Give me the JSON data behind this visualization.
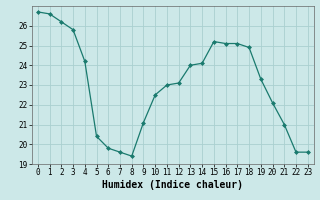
{
  "x": [
    0,
    1,
    2,
    3,
    4,
    5,
    6,
    7,
    8,
    9,
    10,
    11,
    12,
    13,
    14,
    15,
    16,
    17,
    18,
    19,
    20,
    21,
    22,
    23
  ],
  "y": [
    26.7,
    26.6,
    26.2,
    25.8,
    24.2,
    20.4,
    19.8,
    19.6,
    19.4,
    21.1,
    22.5,
    23.0,
    23.1,
    24.0,
    24.1,
    25.2,
    25.1,
    25.1,
    24.9,
    23.3,
    22.1,
    21.0,
    19.6,
    19.6
  ],
  "line_color": "#1a7a6e",
  "marker": "D",
  "marker_size": 2.0,
  "bg_color": "#cce8e8",
  "grid_color": "#aad0d0",
  "xlabel": "Humidex (Indice chaleur)",
  "ylim": [
    19,
    27
  ],
  "xlim": [
    -0.5,
    23.5
  ],
  "yticks": [
    19,
    20,
    21,
    22,
    23,
    24,
    25,
    26
  ],
  "xticks": [
    0,
    1,
    2,
    3,
    4,
    5,
    6,
    7,
    8,
    9,
    10,
    11,
    12,
    13,
    14,
    15,
    16,
    17,
    18,
    19,
    20,
    21,
    22,
    23
  ],
  "tick_fontsize": 5.5,
  "xlabel_fontsize": 7.0
}
